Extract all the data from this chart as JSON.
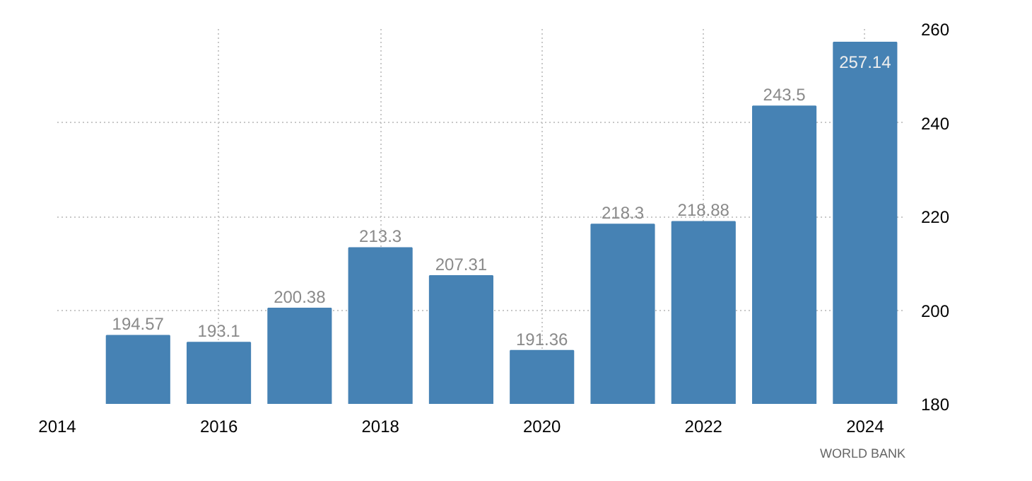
{
  "chart_data": {
    "type": "bar",
    "x": [
      2015,
      2016,
      2017,
      2018,
      2019,
      2020,
      2021,
      2022,
      2023,
      2024
    ],
    "values": [
      194.57,
      193.1,
      200.38,
      213.3,
      207.31,
      191.36,
      218.3,
      218.88,
      243.5,
      257.14
    ],
    "color": "#4682b4",
    "xlim": [
      2014,
      2024.5
    ],
    "xticks": [
      2014,
      2016,
      2018,
      2020,
      2022,
      2024
    ],
    "ylim": [
      180,
      260
    ],
    "yticks": [
      180,
      200,
      220,
      240,
      260
    ],
    "grid": true,
    "data_labels": true,
    "annotations": [
      "WORLD BANK"
    ]
  }
}
